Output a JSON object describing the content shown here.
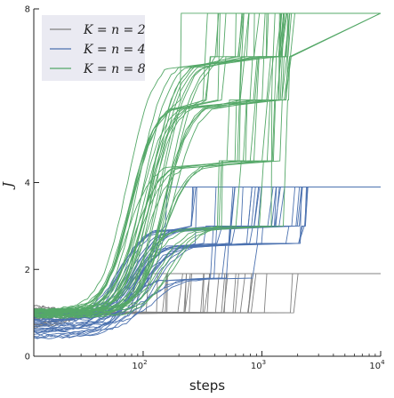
{
  "chart_data": {
    "type": "line",
    "title": "",
    "xlabel": "steps",
    "ylabel": "J",
    "xscale": "log",
    "xlim": [
      12,
      10000
    ],
    "ylim": [
      0,
      8
    ],
    "x_ticks": [
      {
        "value": 100,
        "base": "10",
        "exp": "2"
      },
      {
        "value": 1000,
        "base": "10",
        "exp": "3"
      },
      {
        "value": 10000,
        "base": "10",
        "exp": "4"
      }
    ],
    "y_ticks": [
      {
        "value": 0,
        "label": "0"
      },
      {
        "value": 2,
        "label": "2"
      },
      {
        "value": 4,
        "label": "4"
      },
      {
        "value": 8,
        "label": "8"
      }
    ],
    "grid": false,
    "legend_position": "top-left",
    "series": [
      {
        "name": "K = n = 2",
        "color": "#808080",
        "n_runs": 30,
        "start_range": [
          0.6,
          1.2
        ],
        "rise_step_range": [
          12,
          25
        ],
        "levels": [
          1.0,
          1.9
        ],
        "final_plateau": 1.9,
        "jump_step_range": [
          70,
          2500
        ]
      },
      {
        "name": "K = n = 4",
        "color": "#4c72b0",
        "n_runs": 30,
        "start_range": [
          0.4,
          1.0
        ],
        "rise_step_range": [
          60,
          130
        ],
        "levels": [
          1.8,
          2.6,
          3.0,
          3.9
        ],
        "final_plateau": 3.9,
        "jump_step_range": [
          150,
          2300
        ]
      },
      {
        "name": "K = n = 8",
        "color": "#55a868",
        "n_runs": 40,
        "start_range": [
          0.9,
          1.1
        ],
        "rise_step_range": [
          70,
          180
        ],
        "levels": [
          3.0,
          4.5,
          5.9,
          6.9,
          7.9
        ],
        "final_plateau": 7.9,
        "jump_step_range": [
          200,
          1600
        ]
      }
    ]
  }
}
